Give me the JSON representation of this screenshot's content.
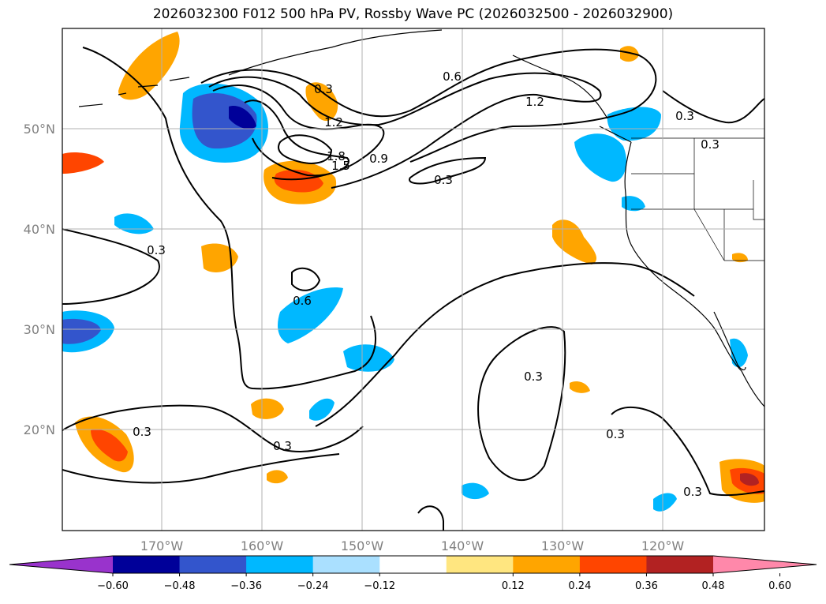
{
  "title": "2026032300 F012 500 hPa PV, Rossby Wave PC (2026032500 - 2026032900)",
  "lat_labels": [
    "50°N",
    "40°N",
    "30°N",
    "20°N"
  ],
  "lon_labels": [
    "170°W",
    "160°W",
    "150°W",
    "140°W",
    "130°W",
    "120°W"
  ],
  "contour_labels": [
    "0.6",
    "1.2",
    "0.3",
    "1.2",
    "1.8",
    "1.5",
    "0.9",
    "0.3",
    "0.3",
    "0.6",
    "0.3",
    "0.3",
    "0.3",
    "0.3",
    "0.3",
    "0.3",
    "0.3"
  ],
  "colorbar": {
    "colors": [
      "#9933cc",
      "#000099",
      "#3355cc",
      "#00b8ff",
      "#aae0ff",
      "#ffffff",
      "#ffe680",
      "#ffa500",
      "#ff4500",
      "#b22222",
      "#ff88aa"
    ],
    "ticks": [
      "−0.60",
      "−0.48",
      "−0.36",
      "−0.24",
      "−0.12",
      "0.12",
      "0.24",
      "0.36",
      "0.48",
      "0.60"
    ]
  }
}
